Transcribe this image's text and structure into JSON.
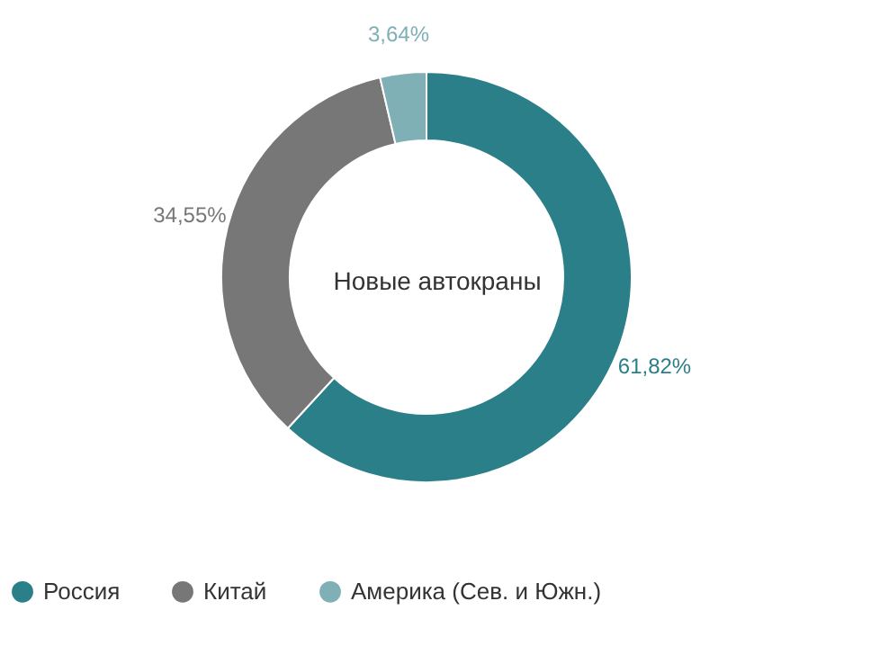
{
  "chart_data": {
    "type": "donut",
    "categories": [
      "Россия",
      "Китай",
      "Америка (Сев. и Южн.)"
    ],
    "values": [
      61.82,
      34.55,
      3.64
    ],
    "colors": [
      "#2a7f89",
      "#777777",
      "#7fb0b5"
    ],
    "value_labels": [
      "61,82%",
      "34,55%",
      "3,64%"
    ],
    "annotations": [
      "Новые автокраны"
    ],
    "legend": "bottom"
  }
}
